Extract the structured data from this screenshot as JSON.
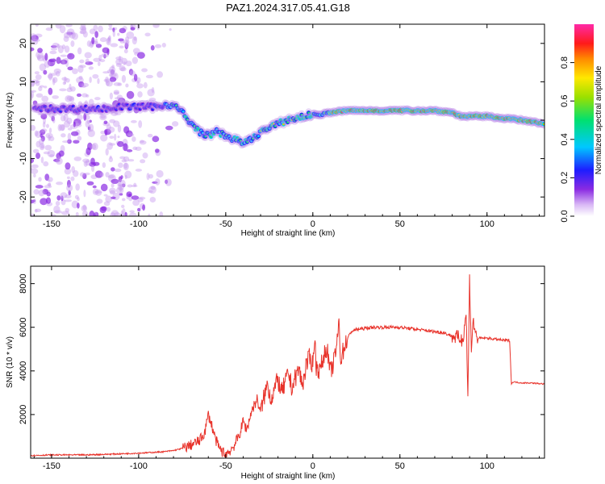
{
  "title": "PAZ1.2024.317.05.41.G18",
  "colors": {
    "snr_line": "#e8332b",
    "axis": "#000000"
  },
  "chart_data": [
    {
      "type": "heatmap",
      "xlabel": "Height of straight line (km)",
      "ylabel": "Frequency (Hz)",
      "xlim": [
        -162,
        133
      ],
      "ylim": [
        -25,
        25
      ],
      "xticks": [
        "-150",
        "-100",
        "-50",
        "0",
        "50",
        "100"
      ],
      "yticks": [
        "20",
        "10",
        "0",
        "-10",
        "-20"
      ],
      "colorbar": {
        "label": "Normalized spectral amplitude",
        "range": [
          0,
          1
        ],
        "ticks": [
          "0.0",
          "0.2",
          "0.4",
          "0.6",
          "0.8"
        ],
        "colormap": "rainbow (white-violet-blue-cyan-green-yellow-red-magenta)"
      },
      "ridge": {
        "x": [
          -160,
          -150,
          -140,
          -130,
          -120,
          -110,
          -100,
          -90,
          -85,
          -80,
          -75,
          -70,
          -65,
          -60,
          -55,
          -50,
          -45,
          -40,
          -35,
          -30,
          -25,
          -20,
          -15,
          -10,
          -5,
          0,
          5,
          10,
          20,
          30,
          40,
          50,
          60,
          70,
          80,
          85,
          90,
          100,
          110,
          120,
          133
        ],
        "y": [
          3,
          3,
          3,
          3,
          3,
          3.5,
          3.5,
          3.5,
          4,
          4,
          2,
          -1,
          -3,
          -4,
          -3,
          -4,
          -5,
          -6,
          -5,
          -3,
          -2,
          -1,
          0,
          0.5,
          1,
          1.5,
          1.5,
          2,
          2.5,
          2.5,
          2.5,
          2.5,
          2.5,
          2.5,
          2,
          1,
          1,
          1,
          0.5,
          0,
          -1
        ]
      },
      "noise_region_x": [
        -162,
        -75
      ],
      "grid": false
    },
    {
      "type": "line",
      "xlabel": "Height of straight line (km)",
      "ylabel": "SNR (10 * v/v)",
      "xlim": [
        -162,
        133
      ],
      "ylim": [
        0,
        8800
      ],
      "xticks": [
        "-150",
        "-100",
        "-50",
        "0",
        "50",
        "100"
      ],
      "yticks": [
        "2000",
        "4000",
        "6000",
        "8000"
      ],
      "series": [
        {
          "x": [
            -162,
            -150,
            -130,
            -110,
            -95,
            -85,
            -80,
            -75,
            -70,
            -65,
            -62,
            -60,
            -58,
            -56,
            -54,
            -52,
            -50,
            -48,
            -45,
            -42,
            -40,
            -38,
            -35,
            -32,
            -30,
            -28,
            -26,
            -24,
            -22,
            -20,
            -18,
            -16,
            -14,
            -12,
            -10,
            -8,
            -6,
            -4,
            -2,
            0,
            1,
            2,
            4,
            6,
            8,
            10,
            12,
            14,
            15,
            16,
            17,
            18,
            20,
            22,
            25,
            30,
            35,
            40,
            50,
            60,
            70,
            75,
            80,
            84,
            86,
            88,
            89,
            90,
            91,
            92,
            94,
            100,
            110,
            113,
            114,
            115,
            120,
            125,
            133
          ],
          "y": [
            120,
            150,
            150,
            200,
            250,
            300,
            350,
            450,
            600,
            800,
            1200,
            2000,
            1500,
            900,
            500,
            300,
            200,
            300,
            600,
            1100,
            1700,
            1300,
            2200,
            2700,
            2100,
            2800,
            3400,
            2700,
            3200,
            3600,
            3000,
            3400,
            3900,
            3200,
            3700,
            4100,
            3300,
            4200,
            4600,
            4300,
            5600,
            4200,
            4000,
            4600,
            5100,
            3900,
            4400,
            5300,
            6300,
            4500,
            4800,
            5100,
            5500,
            5800,
            5900,
            5950,
            6000,
            6000,
            6000,
            5900,
            5800,
            5750,
            5600,
            5500,
            5400,
            6700,
            2700,
            8200,
            5000,
            6300,
            5500,
            5500,
            5400,
            5400,
            3400,
            3500,
            3450,
            3450,
            3400
          ]
        }
      ],
      "grid": false
    }
  ]
}
